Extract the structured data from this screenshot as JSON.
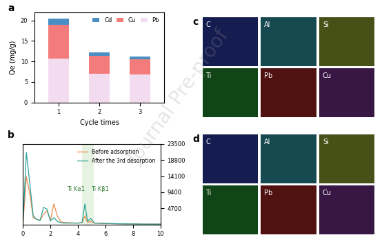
{
  "chart_data": [
    {
      "type": "bar",
      "panel": "a",
      "stacked": true,
      "categories": [
        "1",
        "2",
        "3"
      ],
      "x_label": "Cycle times",
      "y_label": "Qe (mg/g)",
      "ylim": [
        0,
        22
      ],
      "yticks": [
        0,
        5,
        10,
        15,
        20
      ],
      "legend": "upper right",
      "series": [
        {
          "name": "Pb",
          "color": "#f3dcef",
          "values": [
            10.7,
            7.0,
            6.9
          ]
        },
        {
          "name": "Cu",
          "color": "#f47b7b",
          "values": [
            8.2,
            4.3,
            3.6
          ]
        },
        {
          "name": "Cd",
          "color": "#4a8fc4",
          "values": [
            1.6,
            0.9,
            0.7
          ]
        }
      ]
    },
    {
      "type": "line",
      "panel": "b",
      "x": [
        0,
        0.25,
        0.5,
        0.75,
        1,
        1.25,
        1.5,
        1.75,
        2,
        2.25,
        2.5,
        2.75,
        3,
        3.5,
        4,
        4.3,
        4.51,
        4.7,
        4.93,
        5.2,
        6,
        7,
        8,
        9,
        10
      ],
      "xlim": [
        0,
        10
      ],
      "xticks": [
        0,
        2,
        4,
        6,
        8,
        10
      ],
      "ylim": [
        0,
        23500
      ],
      "yticks": [
        4700,
        9400,
        14100,
        18800,
        23500
      ],
      "legend": "upper right",
      "series": [
        {
          "name": "Before adsorption",
          "color": "#e8894a",
          "values": [
            0,
            14000,
            9000,
            2000,
            1500,
            1200,
            3000,
            4000,
            1200,
            6000,
            2500,
            800,
            600,
            500,
            400,
            500,
            2500,
            600,
            900,
            400,
            300,
            200,
            150,
            100,
            100
          ]
        },
        {
          "name": "After the 3rd desorption",
          "color": "#2aa198",
          "values": [
            0,
            21000,
            12000,
            2500,
            1500,
            1200,
            5000,
            4500,
            1000,
            2000,
            900,
            500,
            400,
            400,
            400,
            600,
            6000,
            900,
            1800,
            400,
            300,
            200,
            150,
            100,
            100
          ]
        }
      ],
      "annotations": [
        {
          "text": "Ti Kα1",
          "x": 4.51
        },
        {
          "text": "Ti Kβ1",
          "x": 4.93
        }
      ]
    }
  ],
  "maps": [
    {
      "panel": "c",
      "tiles": [
        {
          "label": "C",
          "color": "#3b4fe0"
        },
        {
          "label": "Al",
          "color": "#3fd0e0"
        },
        {
          "label": "Si",
          "color": "#c8e040"
        },
        {
          "label": "Ti",
          "color": "#30c040"
        },
        {
          "label": "Pb",
          "color": "#e03030"
        },
        {
          "label": "Cu",
          "color": "#a040c0"
        }
      ]
    },
    {
      "panel": "d",
      "tiles": [
        {
          "label": "C",
          "color": "#3b4fe0"
        },
        {
          "label": "Al",
          "color": "#3fd0e0"
        },
        {
          "label": "Si",
          "color": "#c8e040"
        },
        {
          "label": "Ti",
          "color": "#30c040"
        },
        {
          "label": "Pb",
          "color": "#e03030"
        },
        {
          "label": "Cu",
          "color": "#a040c0"
        }
      ]
    }
  ],
  "watermark": "Journal Pre-proof"
}
